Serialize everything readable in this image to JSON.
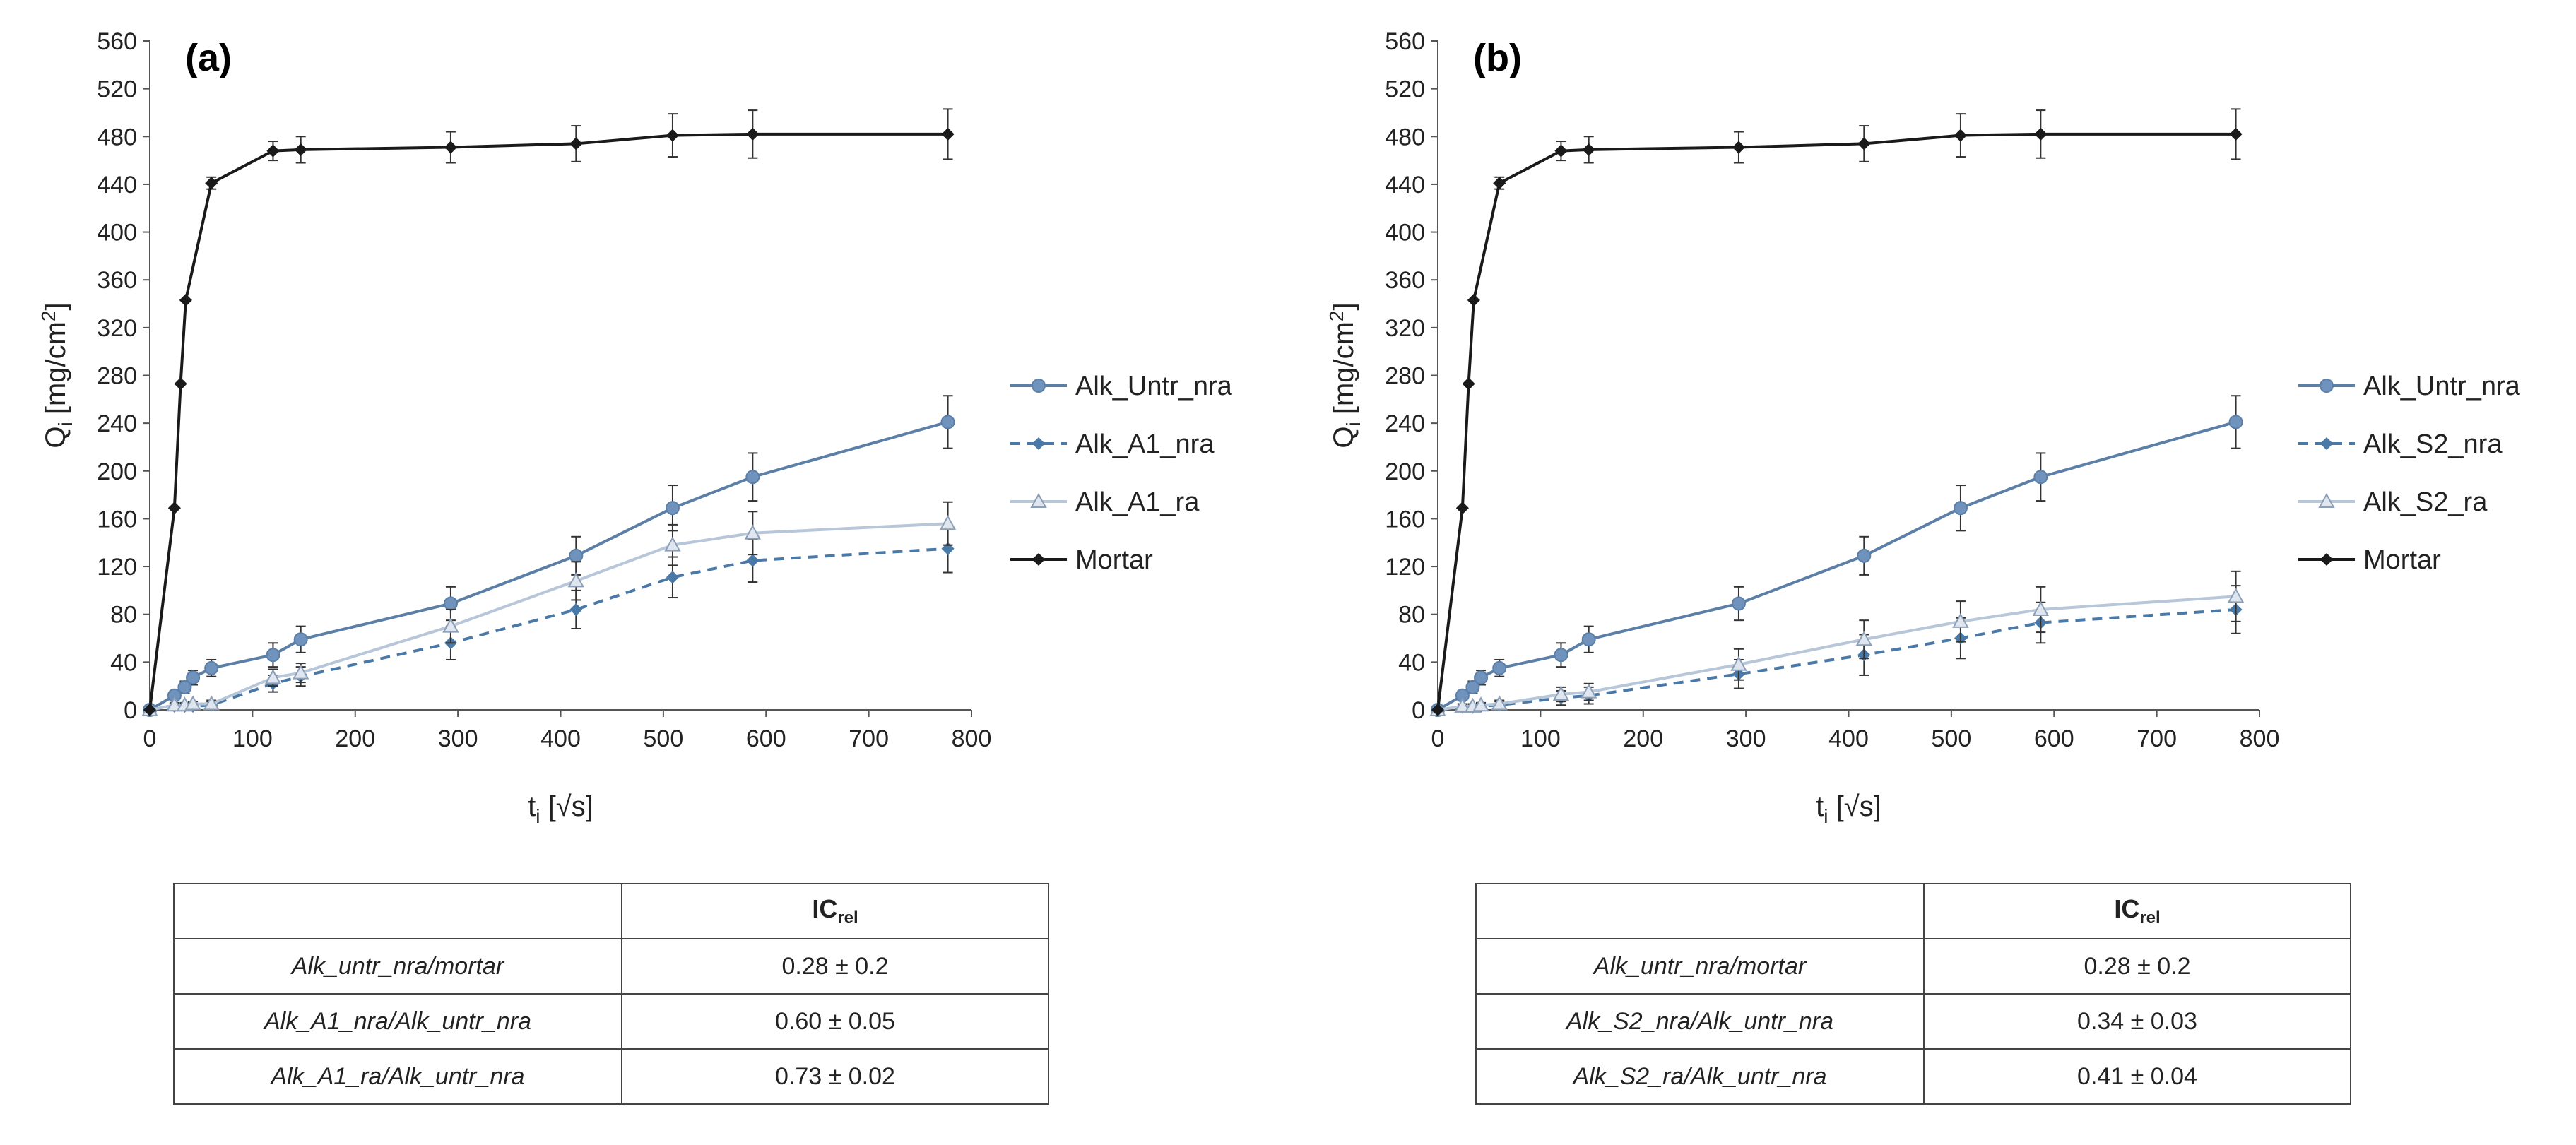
{
  "colors": {
    "untr": "#5b7fa6",
    "nra": "#4a79a8",
    "ra": "#b7c6d8",
    "mortar": "#1a1a1a",
    "marker_untr": "#6f93bd"
  },
  "ic_header_main": "IC",
  "ic_header_sub": "rel",
  "chart_data": [
    {
      "panel_label": "(a)",
      "type": "line",
      "xlabel_main": "t",
      "xlabel_sub": "i",
      "xlabel_rest": " [√s]",
      "ylabel_main": "Q",
      "ylabel_sub": "i",
      "ylabel_rest": " [mg/cm",
      "ylabel_sup": "2",
      "ylabel_end": "]",
      "xlim": [
        0,
        800
      ],
      "ylim": [
        0,
        560
      ],
      "xticks": [
        0,
        100,
        200,
        300,
        400,
        500,
        600,
        700,
        800
      ],
      "yticks": [
        0,
        40,
        80,
        120,
        160,
        200,
        240,
        280,
        320,
        360,
        400,
        440,
        480,
        520,
        560
      ],
      "legend_position": "right",
      "series": [
        {
          "name": "Alk_Untr_nra",
          "style": "untr",
          "marker": "circle",
          "x": [
            0,
            24,
            34,
            42,
            60,
            120,
            147,
            293,
            415,
            509,
            587,
            777
          ],
          "y": [
            0,
            12,
            19,
            27,
            35,
            46,
            59,
            89,
            129,
            169,
            195,
            241
          ],
          "err": [
            0,
            4,
            5,
            6,
            7,
            10,
            11,
            14,
            16,
            19,
            20,
            22
          ]
        },
        {
          "name": "Alk_A1_nra",
          "style": "nra",
          "marker": "diamond",
          "x": [
            0,
            24,
            34,
            42,
            60,
            120,
            147,
            293,
            415,
            509,
            587,
            777
          ],
          "y": [
            0,
            3,
            3,
            3,
            4,
            22,
            28,
            56,
            84,
            111,
            125,
            135
          ],
          "err": [
            0,
            2,
            2,
            2,
            3,
            7,
            8,
            14,
            16,
            17,
            18,
            20
          ]
        },
        {
          "name": "Alk_A1_ra",
          "style": "ra",
          "marker": "triangle",
          "x": [
            0,
            24,
            34,
            42,
            60,
            120,
            147,
            293,
            415,
            509,
            587,
            777
          ],
          "y": [
            0,
            4,
            4,
            5,
            5,
            27,
            31,
            70,
            108,
            138,
            148,
            156
          ],
          "err": [
            0,
            2,
            2,
            2,
            3,
            7,
            8,
            14,
            16,
            17,
            18,
            18
          ]
        },
        {
          "name": "Mortar",
          "style": "mortar",
          "marker": "diamond",
          "x": [
            0,
            24,
            30,
            35,
            60,
            120,
            147,
            293,
            415,
            509,
            587,
            777
          ],
          "y": [
            0,
            169,
            273,
            343,
            441,
            468,
            469,
            471,
            474,
            481,
            482,
            482
          ],
          "err": [
            0,
            0,
            0,
            0,
            5,
            8,
            11,
            13,
            15,
            18,
            20,
            21
          ]
        }
      ],
      "table": {
        "rows": [
          {
            "label": "Alk_untr_nra/mortar",
            "value": "0.28 ± 0.2"
          },
          {
            "label": "Alk_A1_nra/Alk_untr_nra",
            "value": "0.60 ± 0.05"
          },
          {
            "label": "Alk_A1_ra/Alk_untr_nra",
            "value": "0.73 ± 0.02"
          }
        ]
      }
    },
    {
      "panel_label": "(b)",
      "type": "line",
      "xlabel_main": "t",
      "xlabel_sub": "i",
      "xlabel_rest": " [√s]",
      "ylabel_main": "Q",
      "ylabel_sub": "i",
      "ylabel_rest": " [mg/cm",
      "ylabel_sup": "2",
      "ylabel_end": "]",
      "xlim": [
        0,
        800
      ],
      "ylim": [
        0,
        560
      ],
      "xticks": [
        0,
        100,
        200,
        300,
        400,
        500,
        600,
        700,
        800
      ],
      "yticks": [
        0,
        40,
        80,
        120,
        160,
        200,
        240,
        280,
        320,
        360,
        400,
        440,
        480,
        520,
        560
      ],
      "legend_position": "right",
      "series": [
        {
          "name": "Alk_Untr_nra",
          "style": "untr",
          "marker": "circle",
          "x": [
            0,
            24,
            34,
            42,
            60,
            120,
            147,
            293,
            415,
            509,
            587,
            777
          ],
          "y": [
            0,
            12,
            19,
            27,
            35,
            46,
            59,
            89,
            129,
            169,
            195,
            241
          ],
          "err": [
            0,
            4,
            5,
            6,
            7,
            10,
            11,
            14,
            16,
            19,
            20,
            22
          ]
        },
        {
          "name": "Alk_S2_nra",
          "style": "nra",
          "marker": "diamond",
          "x": [
            0,
            24,
            34,
            42,
            60,
            120,
            147,
            293,
            415,
            509,
            587,
            777
          ],
          "y": [
            0,
            2,
            2,
            3,
            4,
            10,
            12,
            30,
            46,
            60,
            73,
            84
          ],
          "err": [
            0,
            2,
            2,
            2,
            3,
            6,
            7,
            12,
            17,
            17,
            17,
            20
          ]
        },
        {
          "name": "Alk_S2_ra",
          "style": "ra",
          "marker": "triangle",
          "x": [
            0,
            24,
            34,
            42,
            60,
            120,
            147,
            293,
            415,
            509,
            587,
            777
          ],
          "y": [
            0,
            3,
            3,
            4,
            5,
            13,
            15,
            38,
            59,
            74,
            84,
            95
          ],
          "err": [
            0,
            2,
            2,
            2,
            3,
            6,
            7,
            13,
            16,
            17,
            19,
            21
          ]
        },
        {
          "name": "Mortar",
          "style": "mortar",
          "marker": "diamond",
          "x": [
            0,
            24,
            30,
            35,
            60,
            120,
            147,
            293,
            415,
            509,
            587,
            777
          ],
          "y": [
            0,
            169,
            273,
            343,
            441,
            468,
            469,
            471,
            474,
            481,
            482,
            482
          ],
          "err": [
            0,
            0,
            0,
            0,
            5,
            8,
            11,
            13,
            15,
            18,
            20,
            21
          ]
        }
      ],
      "table": {
        "rows": [
          {
            "label": "Alk_untr_nra/mortar",
            "value": "0.28 ± 0.2"
          },
          {
            "label": "Alk_S2_nra/Alk_untr_nra",
            "value": "0.34 ± 0.03"
          },
          {
            "label": "Alk_S2_ra/Alk_untr_nra",
            "value": "0.41 ± 0.04"
          }
        ]
      }
    }
  ]
}
